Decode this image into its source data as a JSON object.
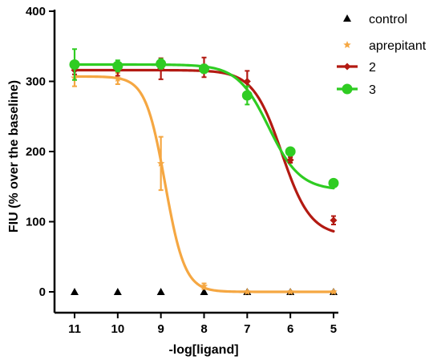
{
  "chart_data": {
    "type": "scatter",
    "xlabel": "-log[ligand]",
    "ylabel": "FIU (% over the baseline)",
    "x": [
      11,
      10,
      9,
      8,
      7,
      6,
      5
    ],
    "x_tick_labels": [
      "11",
      "10",
      "9",
      "8",
      "7",
      "6",
      "5"
    ],
    "x_reversed": true,
    "y_ticks": [
      0,
      100,
      200,
      300,
      400
    ],
    "ylim": [
      -10,
      400
    ],
    "grid": false,
    "legend_position": "top-right",
    "series": [
      {
        "name": "control",
        "marker": "triangle",
        "color": "#000000",
        "values": [
          0,
          0,
          0,
          0,
          0,
          0,
          0
        ],
        "errors": [
          0,
          0,
          0,
          0,
          0,
          0,
          0
        ],
        "fit": false
      },
      {
        "name": "aprepitant",
        "marker": "star",
        "color": "#f5a742",
        "values": [
          305,
          304,
          183,
          8,
          0,
          0,
          0
        ],
        "errors": [
          12,
          8,
          38,
          4,
          1,
          1,
          1
        ],
        "fit": {
          "bottom": 0,
          "top": 307,
          "log_ec50": 8.9,
          "hill": 1.9
        }
      },
      {
        "name": "2",
        "marker": "diamond",
        "color": "#b31a12",
        "values": [
          316,
          316,
          318,
          320,
          300,
          188,
          102
        ],
        "errors": [
          6,
          8,
          15,
          14,
          15,
          4,
          6
        ],
        "fit": {
          "bottom": 80,
          "top": 316,
          "log_ec50": 6.2,
          "hill": 1.3
        }
      },
      {
        "name": "3",
        "marker": "circle",
        "color": "#2fcc22",
        "values": [
          324,
          322,
          325,
          318,
          280,
          200,
          155
        ],
        "errors": [
          22,
          8,
          7,
          6,
          13,
          3,
          2
        ],
        "fit": {
          "bottom": 145,
          "top": 324,
          "log_ec50": 6.5,
          "hill": 1.2
        }
      }
    ]
  }
}
